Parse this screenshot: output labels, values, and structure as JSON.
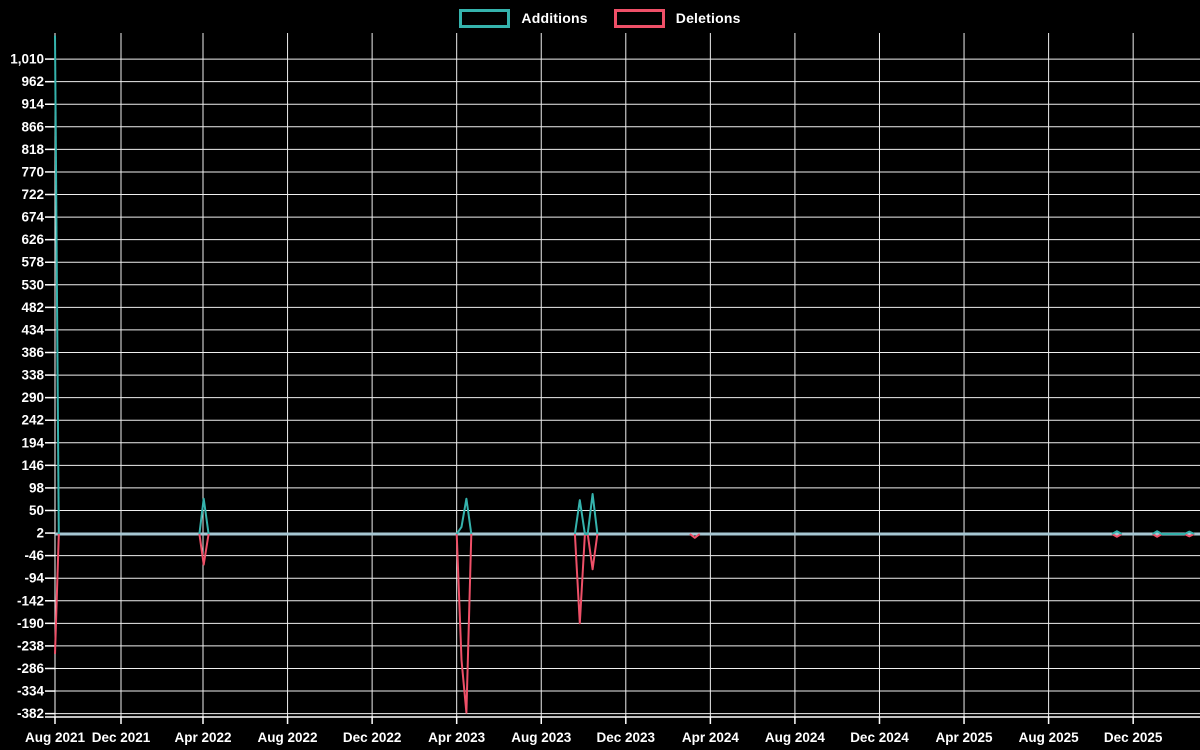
{
  "page": {
    "background": "#000000"
  },
  "legend": {
    "items": [
      {
        "label": "Additions",
        "color": "#35b3ad"
      },
      {
        "label": "Deletions",
        "color": "#ef5068"
      }
    ]
  },
  "chart_data": {
    "type": "line",
    "title": "",
    "xlabel": "",
    "ylabel": "",
    "legend_position": "top-center",
    "grid": true,
    "background_color": "#000000",
    "grid_color": "#efefef",
    "text_color": "#ffffff",
    "ylim": [
      -382,
      1060
    ],
    "y_axis": {
      "tick_step": 48,
      "tick_values": [
        1010,
        962,
        914,
        866,
        818,
        770,
        722,
        674,
        626,
        578,
        530,
        482,
        434,
        386,
        338,
        290,
        242,
        194,
        146,
        98,
        50,
        2,
        -46,
        -94,
        -142,
        -190,
        -238,
        -286,
        -334,
        -382
      ]
    },
    "x_axis": {
      "tick_labels": [
        "Aug 2021",
        "Dec 2021",
        "Apr 2022",
        "Aug 2022",
        "Dec 2022",
        "Apr 2023",
        "Aug 2023",
        "Dec 2023",
        "Apr 2024",
        "Aug 2024",
        "Dec 2024",
        "Apr 2025",
        "Aug 2025",
        "Dec 2025"
      ],
      "months_per_tick": 4,
      "start_month": "2021-08"
    },
    "baseline": {
      "value": 0,
      "color": "#a7c7d3"
    },
    "series": [
      {
        "name": "Additions",
        "color": "#35b3ad",
        "points": [
          [
            "2021-08-01",
            1060
          ],
          [
            "2021-08-08",
            0
          ],
          [
            "2022-03-26",
            0
          ],
          [
            "2022-04-02",
            75
          ],
          [
            "2022-04-09",
            0
          ],
          [
            "2023-04-01",
            0
          ],
          [
            "2023-04-08",
            15
          ],
          [
            "2023-04-15",
            75
          ],
          [
            "2023-04-22",
            0
          ],
          [
            "2023-09-19",
            0
          ],
          [
            "2023-09-26",
            72
          ],
          [
            "2023-10-03",
            0
          ],
          [
            "2023-10-07",
            0
          ],
          [
            "2023-10-14",
            85
          ],
          [
            "2023-10-21",
            0
          ],
          [
            "2025-11-01",
            0
          ],
          [
            "2025-11-08",
            6
          ],
          [
            "2025-11-15",
            0
          ],
          [
            "2025-12-29",
            0
          ],
          [
            "2026-01-05",
            6
          ],
          [
            "2026-01-12",
            0
          ],
          [
            "2026-02-14",
            0
          ],
          [
            "2026-02-21",
            5
          ],
          [
            "2026-02-28",
            0
          ]
        ]
      },
      {
        "name": "Deletions",
        "color": "#ef5068",
        "points": [
          [
            "2021-08-01",
            -255
          ],
          [
            "2021-08-08",
            0
          ],
          [
            "2022-03-26",
            0
          ],
          [
            "2022-04-02",
            -65
          ],
          [
            "2022-04-09",
            0
          ],
          [
            "2023-04-01",
            0
          ],
          [
            "2023-04-08",
            -268
          ],
          [
            "2023-04-15",
            -380
          ],
          [
            "2023-04-22",
            0
          ],
          [
            "2023-09-19",
            0
          ],
          [
            "2023-09-26",
            -190
          ],
          [
            "2023-10-03",
            0
          ],
          [
            "2023-10-07",
            0
          ],
          [
            "2023-10-14",
            -75
          ],
          [
            "2023-10-21",
            0
          ],
          [
            "2024-03-02",
            0
          ],
          [
            "2024-03-09",
            -8
          ],
          [
            "2024-03-16",
            0
          ],
          [
            "2025-11-01",
            0
          ],
          [
            "2025-11-08",
            -6
          ],
          [
            "2025-11-15",
            0
          ],
          [
            "2025-12-29",
            0
          ],
          [
            "2026-01-05",
            -6
          ],
          [
            "2026-01-12",
            0
          ],
          [
            "2026-02-14",
            0
          ],
          [
            "2026-02-21",
            -5
          ],
          [
            "2026-02-28",
            0
          ]
        ]
      }
    ]
  }
}
